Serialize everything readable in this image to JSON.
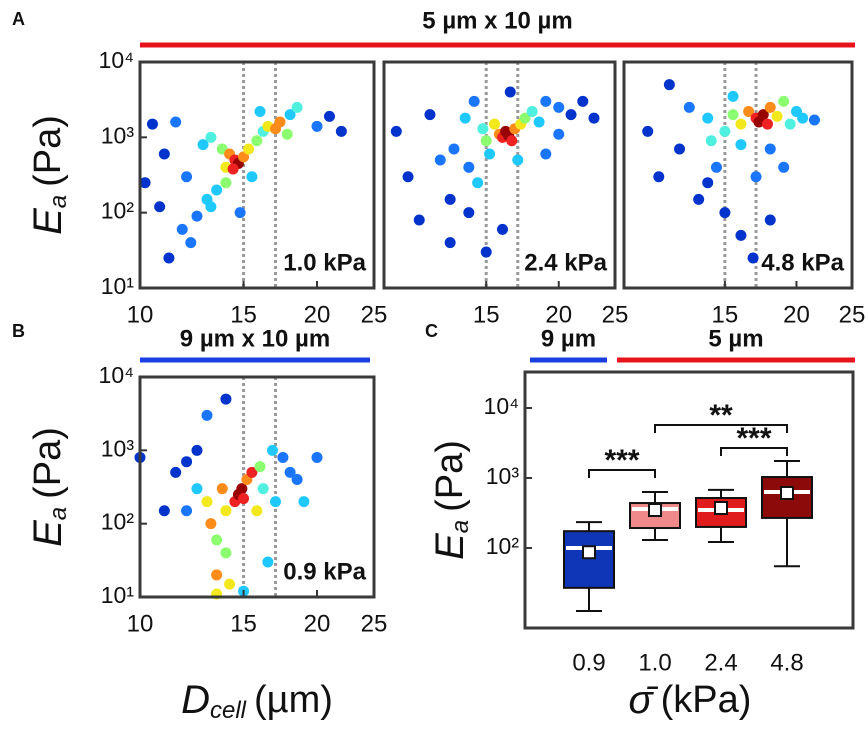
{
  "figure": {
    "panel_labels": [
      "A",
      "B",
      "C"
    ],
    "headers": [
      {
        "text": "5 µm x 10 µm",
        "color": "#e8141c"
      },
      {
        "text": "9 µm x 10 µm",
        "color": "#1a3fe0"
      },
      {
        "text": "9 µm",
        "color": "#1a3fe0"
      },
      {
        "text": "5 µm",
        "color": "#e8141c"
      }
    ]
  },
  "chart_data": [
    {
      "type": "scatter",
      "xscale": "log",
      "yscale": "log",
      "xlim": [
        10,
        25
      ],
      "ylim": [
        10,
        10000
      ],
      "xticks": [
        10,
        15,
        20,
        25
      ],
      "yticks": [
        {
          "value": 10,
          "label": "10¹"
        },
        {
          "value": 100,
          "label": "10²"
        },
        {
          "value": 1000,
          "label": "10³"
        },
        {
          "value": 10000,
          "label": "10⁴"
        }
      ],
      "ylabel": {
        "symbol": "E",
        "subscript": "a",
        "unit": "(Pa)"
      },
      "vlines": [
        15,
        17
      ],
      "annotation": "1.0 kPa",
      "x": [
        10.2,
        10.5,
        11,
        11.5,
        12,
        10.8,
        11.8,
        12.5,
        13,
        12.2,
        13.5,
        11.2,
        12.8,
        13.2,
        13.8,
        14,
        14.2,
        14.5,
        14.7,
        14.4,
        15,
        15.3,
        15.8,
        16.2,
        16.5,
        17,
        17.3,
        17.8,
        18,
        18.5,
        16,
        20,
        21,
        22,
        14.8,
        13.2,
        15.5,
        14
      ],
      "y": [
        250,
        1500,
        600,
        1600,
        300,
        120,
        60,
        90,
        150,
        40,
        200,
        25,
        800,
        1000,
        700,
        400,
        600,
        500,
        450,
        380,
        550,
        700,
        900,
        1200,
        1400,
        1300,
        1600,
        1100,
        2000,
        2500,
        2200,
        1400,
        1900,
        1200,
        100,
        120,
        300,
        250
      ],
      "colors": [
        "#0033cc",
        "#0033cc",
        "#0033cc",
        "#1a75ff",
        "#1a75ff",
        "#0033cc",
        "#1a75ff",
        "#1a75ff",
        "#1fc8ff",
        "#1a75ff",
        "#1fc8ff",
        "#0033cc",
        "#1fc8ff",
        "#4ff0e0",
        "#8cff70",
        "#f2e81c",
        "#ff8c1a",
        "#ee2222",
        "#990000",
        "#ee2222",
        "#ff8c1a",
        "#f2e81c",
        "#8cff70",
        "#4ff0e0",
        "#f2e81c",
        "#ff8c1a",
        "#ff8c1a",
        "#8cff70",
        "#1fc8ff",
        "#4ff0e0",
        "#1fc8ff",
        "#1a75ff",
        "#0033cc",
        "#0033cc",
        "#1a75ff",
        "#1fc8ff",
        "#1fc8ff",
        "#8cff70"
      ]
    },
    {
      "type": "scatter",
      "xscale": "log",
      "yscale": "log",
      "xlim": [
        10,
        25
      ],
      "ylim": [
        10,
        10000
      ],
      "xticks": [
        15,
        20,
        25
      ],
      "vlines": [
        15,
        17
      ],
      "annotation": "2.4 kPa",
      "x": [
        10.5,
        11,
        11.5,
        12,
        12.5,
        13,
        13.2,
        13.8,
        14,
        14.5,
        14.8,
        15,
        15.5,
        15.8,
        16,
        16.2,
        16.4,
        16.6,
        16.8,
        17.2,
        17.5,
        18,
        18.5,
        19,
        20,
        21,
        22,
        23,
        15.2,
        17,
        14,
        16,
        13,
        15,
        19,
        20,
        14.3,
        16.5
      ],
      "y": [
        1200,
        300,
        80,
        2000,
        500,
        150,
        700,
        1800,
        400,
        250,
        1300,
        900,
        1500,
        1100,
        1000,
        1200,
        1050,
        900,
        1300,
        1500,
        1800,
        2200,
        1600,
        3000,
        2500,
        2000,
        3000,
        1800,
        600,
        500,
        100,
        60,
        40,
        30,
        600,
        1100,
        3000,
        4000
      ],
      "colors": [
        "#0033cc",
        "#0033cc",
        "#0033cc",
        "#0033cc",
        "#1a75ff",
        "#0033cc",
        "#1a75ff",
        "#1fc8ff",
        "#1a75ff",
        "#1fc8ff",
        "#4ff0e0",
        "#8cff70",
        "#f2e81c",
        "#ff8c1a",
        "#ee2222",
        "#990000",
        "#990000",
        "#ee2222",
        "#ff8c1a",
        "#f2e81c",
        "#8cff70",
        "#4ff0e0",
        "#1fc8ff",
        "#1a75ff",
        "#1a75ff",
        "#0033cc",
        "#0033cc",
        "#0033cc",
        "#1fc8ff",
        "#1fc8ff",
        "#0033cc",
        "#0033cc",
        "#0033cc",
        "#0033cc",
        "#1a75ff",
        "#1a75ff",
        "#1a75ff",
        "#0033cc"
      ]
    },
    {
      "type": "scatter",
      "xscale": "log",
      "yscale": "log",
      "xlim": [
        10,
        25
      ],
      "ylim": [
        10,
        10000
      ],
      "xticks": [
        15,
        20,
        25
      ],
      "vlines": [
        15,
        17
      ],
      "annotation": "4.8 kPa",
      "x": [
        11,
        11.5,
        12,
        12.5,
        13,
        13.5,
        14,
        14.2,
        14.5,
        15,
        15.5,
        16,
        16.5,
        17,
        17.2,
        17.5,
        17.8,
        18,
        18.5,
        19,
        19.5,
        20,
        20.5,
        21.5,
        16,
        18,
        17,
        15,
        16,
        18,
        14,
        16.8,
        19,
        15.5
      ],
      "y": [
        1200,
        300,
        5000,
        700,
        2500,
        150,
        1800,
        900,
        400,
        1200,
        2000,
        1500,
        2200,
        1800,
        1600,
        2000,
        1500,
        2500,
        1900,
        3000,
        1500,
        2200,
        1800,
        1700,
        800,
        700,
        300,
        100,
        50,
        80,
        250,
        25,
        400,
        3500
      ],
      "colors": [
        "#0033cc",
        "#0033cc",
        "#0033cc",
        "#0033cc",
        "#1a75ff",
        "#0033cc",
        "#1fc8ff",
        "#4ff0e0",
        "#1a75ff",
        "#4ff0e0",
        "#8cff70",
        "#f2e81c",
        "#ff8c1a",
        "#ee2222",
        "#990000",
        "#990000",
        "#ee2222",
        "#ff8c1a",
        "#f2e81c",
        "#8cff70",
        "#4ff0e0",
        "#1fc8ff",
        "#1fc8ff",
        "#1a75ff",
        "#1fc8ff",
        "#1a75ff",
        "#1a75ff",
        "#0033cc",
        "#0033cc",
        "#0033cc",
        "#0033cc",
        "#0033cc",
        "#1a75ff",
        "#1fc8ff"
      ]
    },
    {
      "type": "scatter",
      "xscale": "log",
      "yscale": "log",
      "xlim": [
        10,
        25
      ],
      "ylim": [
        10,
        10000
      ],
      "xticks": [
        10,
        15,
        20,
        25
      ],
      "yticks": [
        {
          "value": 10,
          "label": "10¹"
        },
        {
          "value": 100,
          "label": "10²"
        },
        {
          "value": 1000,
          "label": "10³"
        },
        {
          "value": 10000,
          "label": "10⁴"
        }
      ],
      "ylabel": {
        "symbol": "E",
        "subscript": "a",
        "unit": "(Pa)"
      },
      "xlabel": {
        "symbol": "D",
        "subscript": "cell",
        "unit": "(µm)"
      },
      "vlines": [
        15,
        17
      ],
      "annotation": "0.9 kPa",
      "x": [
        10,
        11,
        11.5,
        12,
        12.5,
        12.5,
        13,
        13.2,
        13.5,
        13.5,
        13.8,
        14,
        14,
        14.2,
        14.5,
        14.7,
        14.9,
        15,
        15.2,
        15.5,
        15.8,
        16,
        16.2,
        16.8,
        17,
        17.5,
        18,
        18.5,
        20,
        13,
        14,
        15,
        16.5,
        19,
        12,
        13.5
      ],
      "y": [
        800,
        150,
        500,
        150,
        1000,
        300,
        200,
        100,
        60,
        20,
        300,
        150,
        40,
        15,
        200,
        250,
        300,
        220,
        400,
        500,
        150,
        600,
        300,
        1000,
        200,
        800,
        500,
        400,
        800,
        3000,
        5000,
        12,
        30,
        200,
        700,
        11
      ],
      "colors": [
        "#0033cc",
        "#0033cc",
        "#0033cc",
        "#1a75ff",
        "#0033cc",
        "#1fc8ff",
        "#f2e81c",
        "#ff8c1a",
        "#8cff70",
        "#ff8c1a",
        "#ff8c1a",
        "#f2e81c",
        "#8cff70",
        "#f2e81c",
        "#ee2222",
        "#990000",
        "#990000",
        "#ee2222",
        "#ff8c1a",
        "#ee2222",
        "#f2e81c",
        "#8cff70",
        "#4ff0e0",
        "#1fc8ff",
        "#1fc8ff",
        "#1a75ff",
        "#1a75ff",
        "#1a75ff",
        "#1a75ff",
        "#1a75ff",
        "#0033cc",
        "#1fc8ff",
        "#1fc8ff",
        "#1fc8ff",
        "#0033cc",
        "#f2e81c"
      ]
    },
    {
      "type": "box",
      "yscale": "log",
      "ylim": [
        7.2,
        32700
      ],
      "yticks": [
        {
          "value": 100,
          "label": "10²"
        },
        {
          "value": 1000,
          "label": "10³"
        },
        {
          "value": 10000,
          "label": "10⁴"
        }
      ],
      "ylabel": {
        "symbol": "E",
        "subscript": "a",
        "unit": "(Pa)"
      },
      "xlabel": {
        "symbol": "σ̄",
        "unit": "(kPa)"
      },
      "categories": [
        "0.9",
        "1.0",
        "2.4",
        "4.8"
      ],
      "boxes": [
        {
          "low": 12.6,
          "q1": 27,
          "median": 100,
          "q3": 174,
          "high": 234,
          "mean": 87,
          "color": "#1036b8"
        },
        {
          "low": 130,
          "q1": 193,
          "median": 361,
          "q3": 439,
          "high": 631,
          "mean": 349,
          "color": "#f08a8a"
        },
        {
          "low": 122,
          "q1": 200,
          "median": 349,
          "q3": 518,
          "high": 676,
          "mean": 373,
          "color": "#e01c1c"
        },
        {
          "low": 55,
          "q1": 269,
          "median": 631,
          "q3": 1033,
          "high": 1750,
          "mean": 611,
          "color": "#8c0a0a"
        }
      ],
      "significance": [
        "***",
        "**",
        "***"
      ]
    }
  ]
}
